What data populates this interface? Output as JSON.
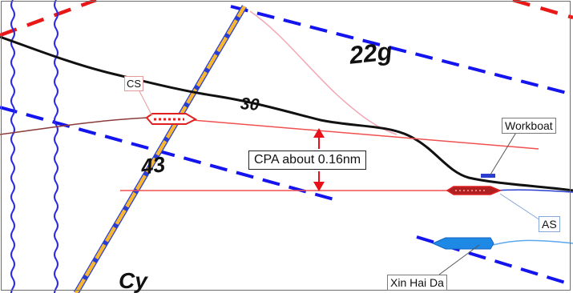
{
  "depth_soundings": {
    "depth_22": "22g",
    "depth_30": "30",
    "depth_43": "43",
    "depth_cy": "Cy"
  },
  "vessels": {
    "cs": {
      "label": "CS",
      "color": "#e02020"
    },
    "workboat": {
      "label": "Workboat",
      "color": "#2a3fd0"
    },
    "as": {
      "label": "AS",
      "color": "#b02020"
    },
    "xin_hai_da": {
      "label": "Xin Hai Da",
      "color": "#1e88e5"
    }
  },
  "annotation": {
    "cpa_label": "CPA about 0.16nm",
    "color": "#e8101a"
  },
  "colors": {
    "boundary_blue": "#1414ee",
    "boundary_red": "#e81818",
    "wavy_line": "#2a2ae6",
    "fairway": "#f7b733",
    "depth_contour": "#111111"
  }
}
